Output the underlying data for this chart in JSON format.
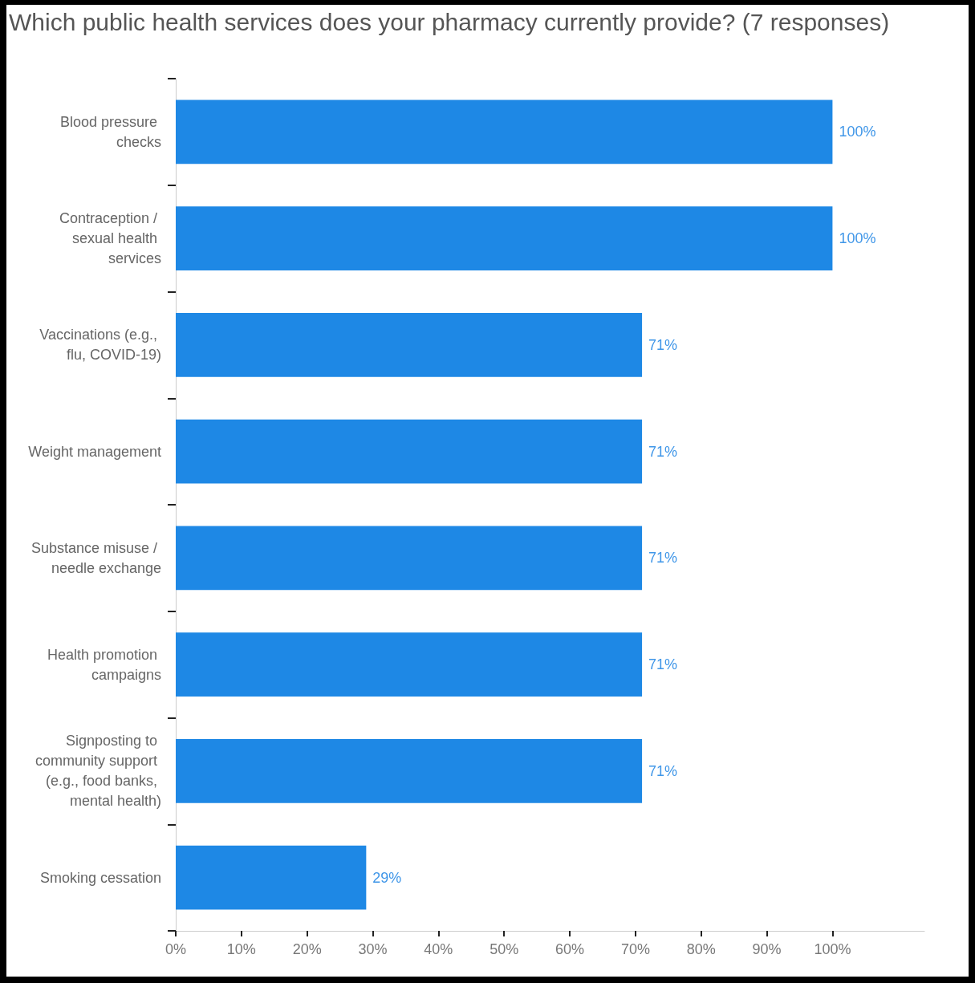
{
  "chart_data": {
    "type": "bar",
    "orientation": "horizontal",
    "title": "Which public health services does your pharmacy currently provide? (7 responses)",
    "categories": [
      "Blood pressure checks",
      "Contraception / sexual health services",
      "Vaccinations (e.g., flu, COVID-19)",
      "Weight management",
      "Substance misuse / needle exchange",
      "Health promotion campaigns",
      "Signposting to community support (e.g., food banks, mental health)",
      "Smoking cessation"
    ],
    "values": [
      100,
      100,
      71,
      71,
      71,
      71,
      71,
      29
    ],
    "color": "#1e88e5",
    "value_labels": [
      "100%",
      "100%",
      "71%",
      "71%",
      "71%",
      "71%",
      "71%",
      "29%"
    ],
    "xlim": [
      0,
      114
    ],
    "xticks": [
      {
        "value": 0,
        "label": "0%"
      },
      {
        "value": 10,
        "label": "10%"
      },
      {
        "value": 20,
        "label": "20%"
      },
      {
        "value": 30,
        "label": "30%"
      },
      {
        "value": 40,
        "label": "40%"
      },
      {
        "value": 50,
        "label": "50%"
      },
      {
        "value": 60,
        "label": "60%"
      },
      {
        "value": 70,
        "label": "70%"
      },
      {
        "value": 80,
        "label": "80%"
      },
      {
        "value": 90,
        "label": "90%"
      },
      {
        "value": 100,
        "label": "100%"
      }
    ]
  }
}
